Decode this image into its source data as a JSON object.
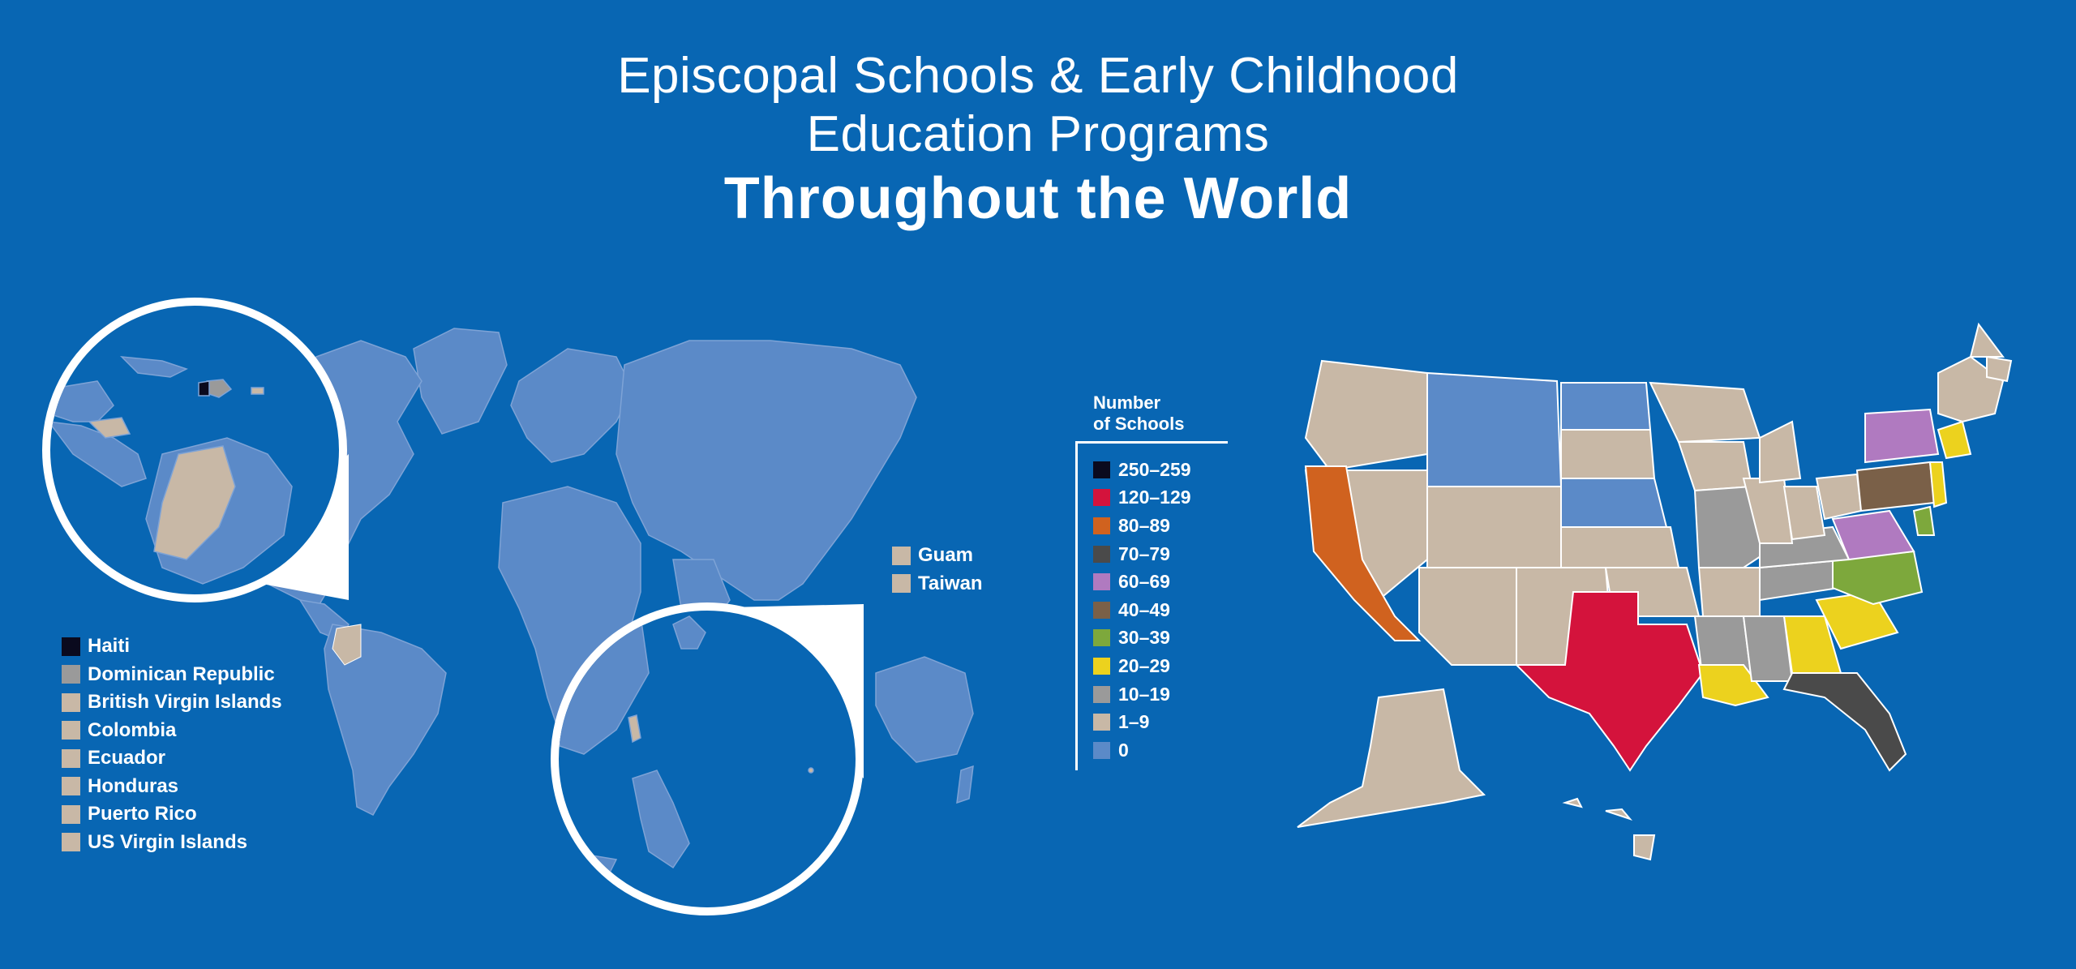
{
  "title": {
    "line1": "Episcopal Schools & Early Childhood",
    "line2": "Education Programs",
    "line3": "Throughout the World"
  },
  "world_legend": [
    {
      "label": "Haiti",
      "color": "#0a0a1e"
    },
    {
      "label": "Dominican Republic",
      "color": "#9a9a9a"
    },
    {
      "label": "British Virgin Islands",
      "color": "#c8b8a6"
    },
    {
      "label": "Colombia",
      "color": "#c8b8a6"
    },
    {
      "label": "Ecuador",
      "color": "#c8b8a6"
    },
    {
      "label": "Honduras",
      "color": "#c8b8a6"
    },
    {
      "label": "Puerto Rico",
      "color": "#c8b8a6"
    },
    {
      "label": "US Virgin Islands",
      "color": "#c8b8a6"
    }
  ],
  "pacific_legend": [
    {
      "label": "Guam",
      "color": "#c8b8a6"
    },
    {
      "label": "Taiwan",
      "color": "#c8b8a6"
    }
  ],
  "schools_legend": {
    "title_line1": "Number",
    "title_line2": "of Schools",
    "items": [
      {
        "label": "250–259",
        "color": "#0a0a1e"
      },
      {
        "label": "120–129",
        "color": "#d4133c"
      },
      {
        "label": "80–89",
        "color": "#d0621f"
      },
      {
        "label": "70–79",
        "color": "#4a4a4a"
      },
      {
        "label": "60–69",
        "color": "#b07ac0"
      },
      {
        "label": "40–49",
        "color": "#7a6048"
      },
      {
        "label": "30–39",
        "color": "#7da83c"
      },
      {
        "label": "20–29",
        "color": "#ecd21e"
      },
      {
        "label": "10–19",
        "color": "#9a9a9a"
      },
      {
        "label": "1–9",
        "color": "#c8b8a6"
      },
      {
        "label": "0",
        "color": "#5b8ac8"
      }
    ]
  },
  "colors": {
    "background": "#0866b3",
    "land_zero": "#5b8ac8",
    "land_few": "#c8b8a6",
    "border": "#ffffff"
  }
}
